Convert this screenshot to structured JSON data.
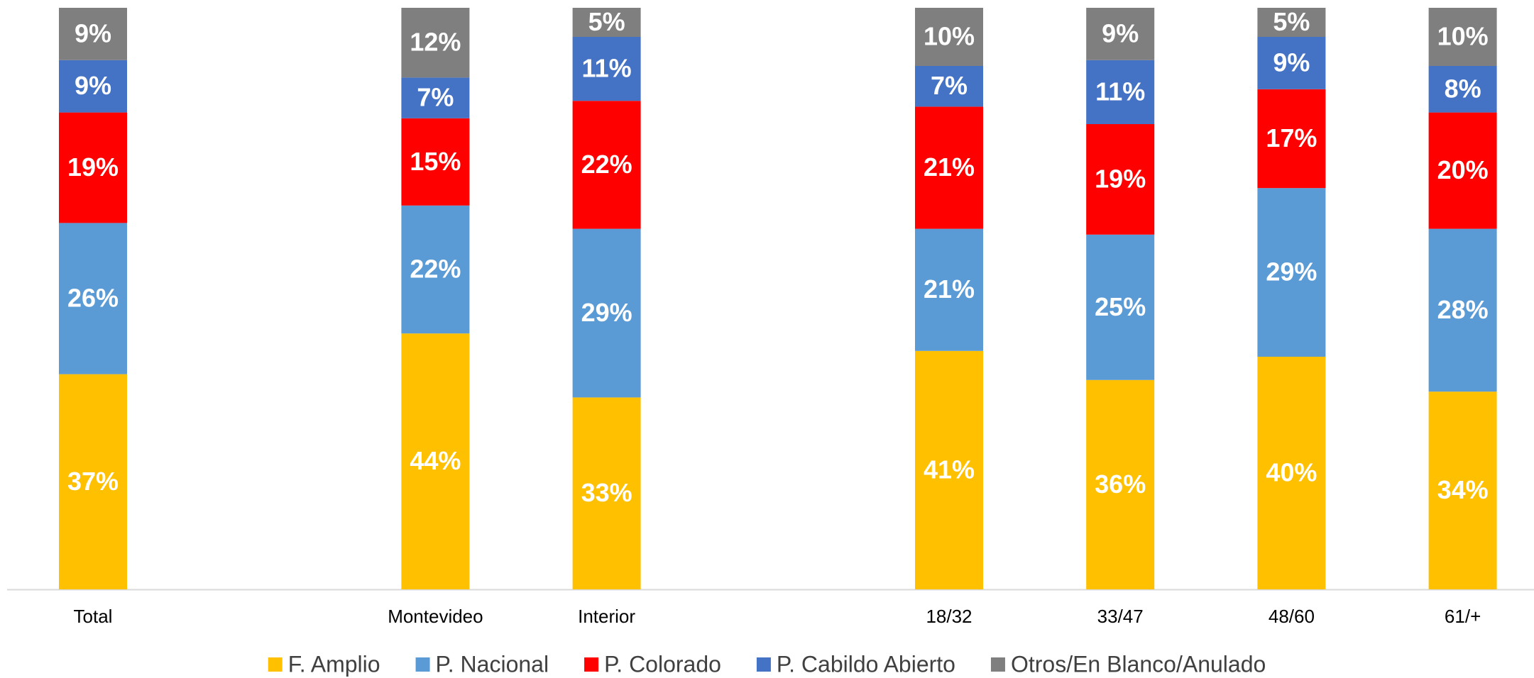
{
  "chart_data": {
    "type": "stacked_bar",
    "categories": [
      "Total",
      null,
      "Montevideo",
      "Interior",
      null,
      "18/32",
      "33/47",
      "48/60",
      "61/+"
    ],
    "ylim": [
      0,
      100
    ],
    "legend": "bottom",
    "series": [
      {
        "name": "F. Amplio",
        "color": "#FFC000",
        "values": [
          37,
          null,
          44,
          33,
          null,
          41,
          36,
          40,
          34
        ],
        "value_labels": [
          "37%",
          null,
          "44%",
          "33%",
          null,
          "41%",
          "36%",
          "40%",
          "34%"
        ]
      },
      {
        "name": "P. Nacional",
        "color": "#5B9BD5",
        "values": [
          26,
          null,
          22,
          29,
          null,
          21,
          25,
          29,
          28
        ],
        "value_labels": [
          "26%",
          null,
          "22%",
          "29%",
          null,
          "21%",
          "25%",
          "29%",
          "28%"
        ]
      },
      {
        "name": "P. Colorado",
        "color": "#FF0000",
        "values": [
          19,
          null,
          15,
          22,
          null,
          21,
          19,
          17,
          20
        ],
        "value_labels": [
          "19%",
          null,
          "15%",
          "22%",
          null,
          "21%",
          "19%",
          "17%",
          "20%"
        ]
      },
      {
        "name": "P. Cabildo Abierto",
        "color": "#4472C4",
        "values": [
          9,
          null,
          7,
          11,
          null,
          7,
          11,
          9,
          8
        ],
        "value_labels": [
          "9%",
          null,
          "7%",
          "11%",
          null,
          "7%",
          "11%",
          "9%",
          "8%"
        ]
      },
      {
        "name": "Otros/En Blanco/Anulado",
        "color": "#7F7F7F",
        "values": [
          9,
          null,
          12,
          5,
          null,
          10,
          9,
          5,
          10
        ],
        "value_labels": [
          "9%",
          null,
          "12%",
          "5%",
          null,
          "10%",
          "9%",
          "5%",
          "10%"
        ]
      }
    ]
  }
}
